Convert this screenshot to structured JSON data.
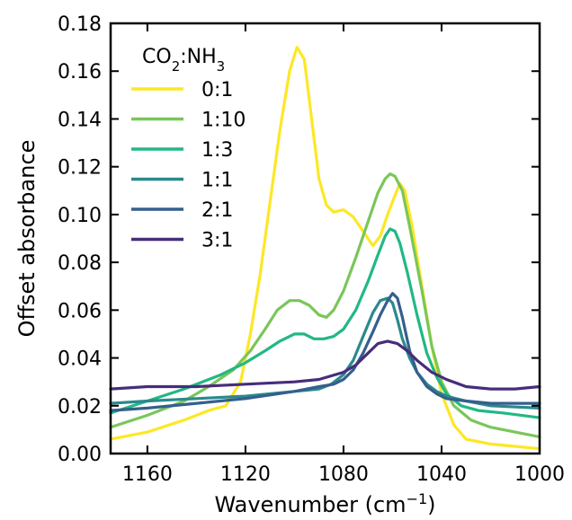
{
  "chart_data": {
    "type": "line",
    "title": "",
    "xlabel": "Wavenumber (cm",
    "xlabel_sup": "−1",
    "xlabel_tail": ")",
    "ylabel": "Offset absorbance",
    "xlim": [
      1175,
      1000
    ],
    "ylim": [
      0,
      0.18
    ],
    "x_reversed": true,
    "grid": false,
    "legend_position": "top-left",
    "x_ticks": [
      1160,
      1120,
      1080,
      1040,
      1000
    ],
    "x_tick_labels": [
      "1160",
      "1120",
      "1080",
      "1040",
      "1000"
    ],
    "y_ticks": [
      0,
      0.02,
      0.04,
      0.06,
      0.08,
      0.1,
      0.12,
      0.14,
      0.16,
      0.18
    ],
    "y_tick_labels": [
      "0.00",
      "0.02",
      "0.04",
      "0.06",
      "0.08",
      "0.10",
      "0.12",
      "0.14",
      "0.16",
      "0.18"
    ],
    "legend_title": {
      "part1": "CO",
      "sub1": "2",
      "part2": ":NH",
      "sub2": "3"
    },
    "series": [
      {
        "name": "0:1",
        "color": "#fde725",
        "x": [
          1175,
          1160,
          1145,
          1135,
          1128,
          1122,
          1118,
          1114,
          1110,
          1106,
          1102,
          1099,
          1096,
          1093,
          1090,
          1087,
          1084,
          1080,
          1076,
          1072,
          1068,
          1065,
          1062,
          1059,
          1057,
          1055,
          1052,
          1048,
          1044,
          1040,
          1035,
          1030,
          1020,
          1010,
          1000
        ],
        "y": [
          0.006,
          0.009,
          0.014,
          0.018,
          0.02,
          0.03,
          0.05,
          0.075,
          0.105,
          0.135,
          0.16,
          0.17,
          0.165,
          0.14,
          0.115,
          0.104,
          0.101,
          0.102,
          0.099,
          0.093,
          0.087,
          0.091,
          0.1,
          0.108,
          0.113,
          0.11,
          0.095,
          0.07,
          0.045,
          0.025,
          0.012,
          0.006,
          0.004,
          0.003,
          0.002
        ]
      },
      {
        "name": "1:10",
        "color": "#7ac65a",
        "x": [
          1175,
          1160,
          1145,
          1135,
          1125,
          1118,
          1112,
          1107,
          1102,
          1098,
          1094,
          1090,
          1087,
          1084,
          1080,
          1075,
          1070,
          1066,
          1063,
          1061,
          1059,
          1056,
          1053,
          1048,
          1044,
          1040,
          1035,
          1028,
          1020,
          1010,
          1000
        ],
        "y": [
          0.011,
          0.016,
          0.022,
          0.028,
          0.035,
          0.043,
          0.052,
          0.06,
          0.064,
          0.064,
          0.062,
          0.058,
          0.057,
          0.06,
          0.068,
          0.082,
          0.097,
          0.109,
          0.115,
          0.117,
          0.116,
          0.11,
          0.095,
          0.068,
          0.045,
          0.03,
          0.02,
          0.014,
          0.011,
          0.009,
          0.007
        ]
      },
      {
        "name": "1:3",
        "color": "#22b883",
        "x": [
          1175,
          1160,
          1145,
          1130,
          1120,
          1112,
          1106,
          1100,
          1096,
          1092,
          1088,
          1084,
          1080,
          1075,
          1070,
          1066,
          1063,
          1061,
          1059,
          1057,
          1054,
          1050,
          1046,
          1042,
          1038,
          1032,
          1025,
          1015,
          1000
        ],
        "y": [
          0.017,
          0.022,
          0.027,
          0.033,
          0.038,
          0.043,
          0.047,
          0.05,
          0.05,
          0.048,
          0.048,
          0.049,
          0.052,
          0.06,
          0.072,
          0.083,
          0.091,
          0.094,
          0.093,
          0.088,
          0.076,
          0.058,
          0.042,
          0.032,
          0.025,
          0.02,
          0.018,
          0.017,
          0.015
        ]
      },
      {
        "name": "1:1",
        "color": "#2a8a8c",
        "x": [
          1175,
          1160,
          1140,
          1120,
          1100,
          1090,
          1085,
          1080,
          1076,
          1072,
          1068,
          1065,
          1062,
          1060,
          1058,
          1056,
          1053,
          1050,
          1046,
          1042,
          1038,
          1030,
          1020,
          1000
        ],
        "y": [
          0.021,
          0.022,
          0.023,
          0.024,
          0.026,
          0.027,
          0.029,
          0.033,
          0.039,
          0.049,
          0.059,
          0.064,
          0.065,
          0.063,
          0.056,
          0.048,
          0.04,
          0.034,
          0.029,
          0.026,
          0.024,
          0.022,
          0.02,
          0.019
        ]
      },
      {
        "name": "2:1",
        "color": "#355f8d",
        "x": [
          1175,
          1160,
          1140,
          1120,
          1100,
          1090,
          1084,
          1080,
          1076,
          1072,
          1068,
          1065,
          1062,
          1060,
          1058,
          1056,
          1053,
          1050,
          1046,
          1042,
          1038,
          1030,
          1020,
          1000
        ],
        "y": [
          0.018,
          0.019,
          0.021,
          0.023,
          0.026,
          0.028,
          0.029,
          0.031,
          0.035,
          0.042,
          0.051,
          0.058,
          0.064,
          0.067,
          0.065,
          0.057,
          0.043,
          0.034,
          0.028,
          0.025,
          0.023,
          0.022,
          0.021,
          0.021
        ]
      },
      {
        "name": "3:1",
        "color": "#472d7b",
        "x": [
          1175,
          1160,
          1140,
          1120,
          1100,
          1090,
          1080,
          1075,
          1070,
          1066,
          1062,
          1058,
          1054,
          1050,
          1044,
          1038,
          1030,
          1020,
          1010,
          1000
        ],
        "y": [
          0.027,
          0.028,
          0.028,
          0.029,
          0.03,
          0.031,
          0.034,
          0.037,
          0.042,
          0.046,
          0.047,
          0.046,
          0.043,
          0.039,
          0.034,
          0.031,
          0.028,
          0.027,
          0.027,
          0.028
        ]
      }
    ]
  }
}
